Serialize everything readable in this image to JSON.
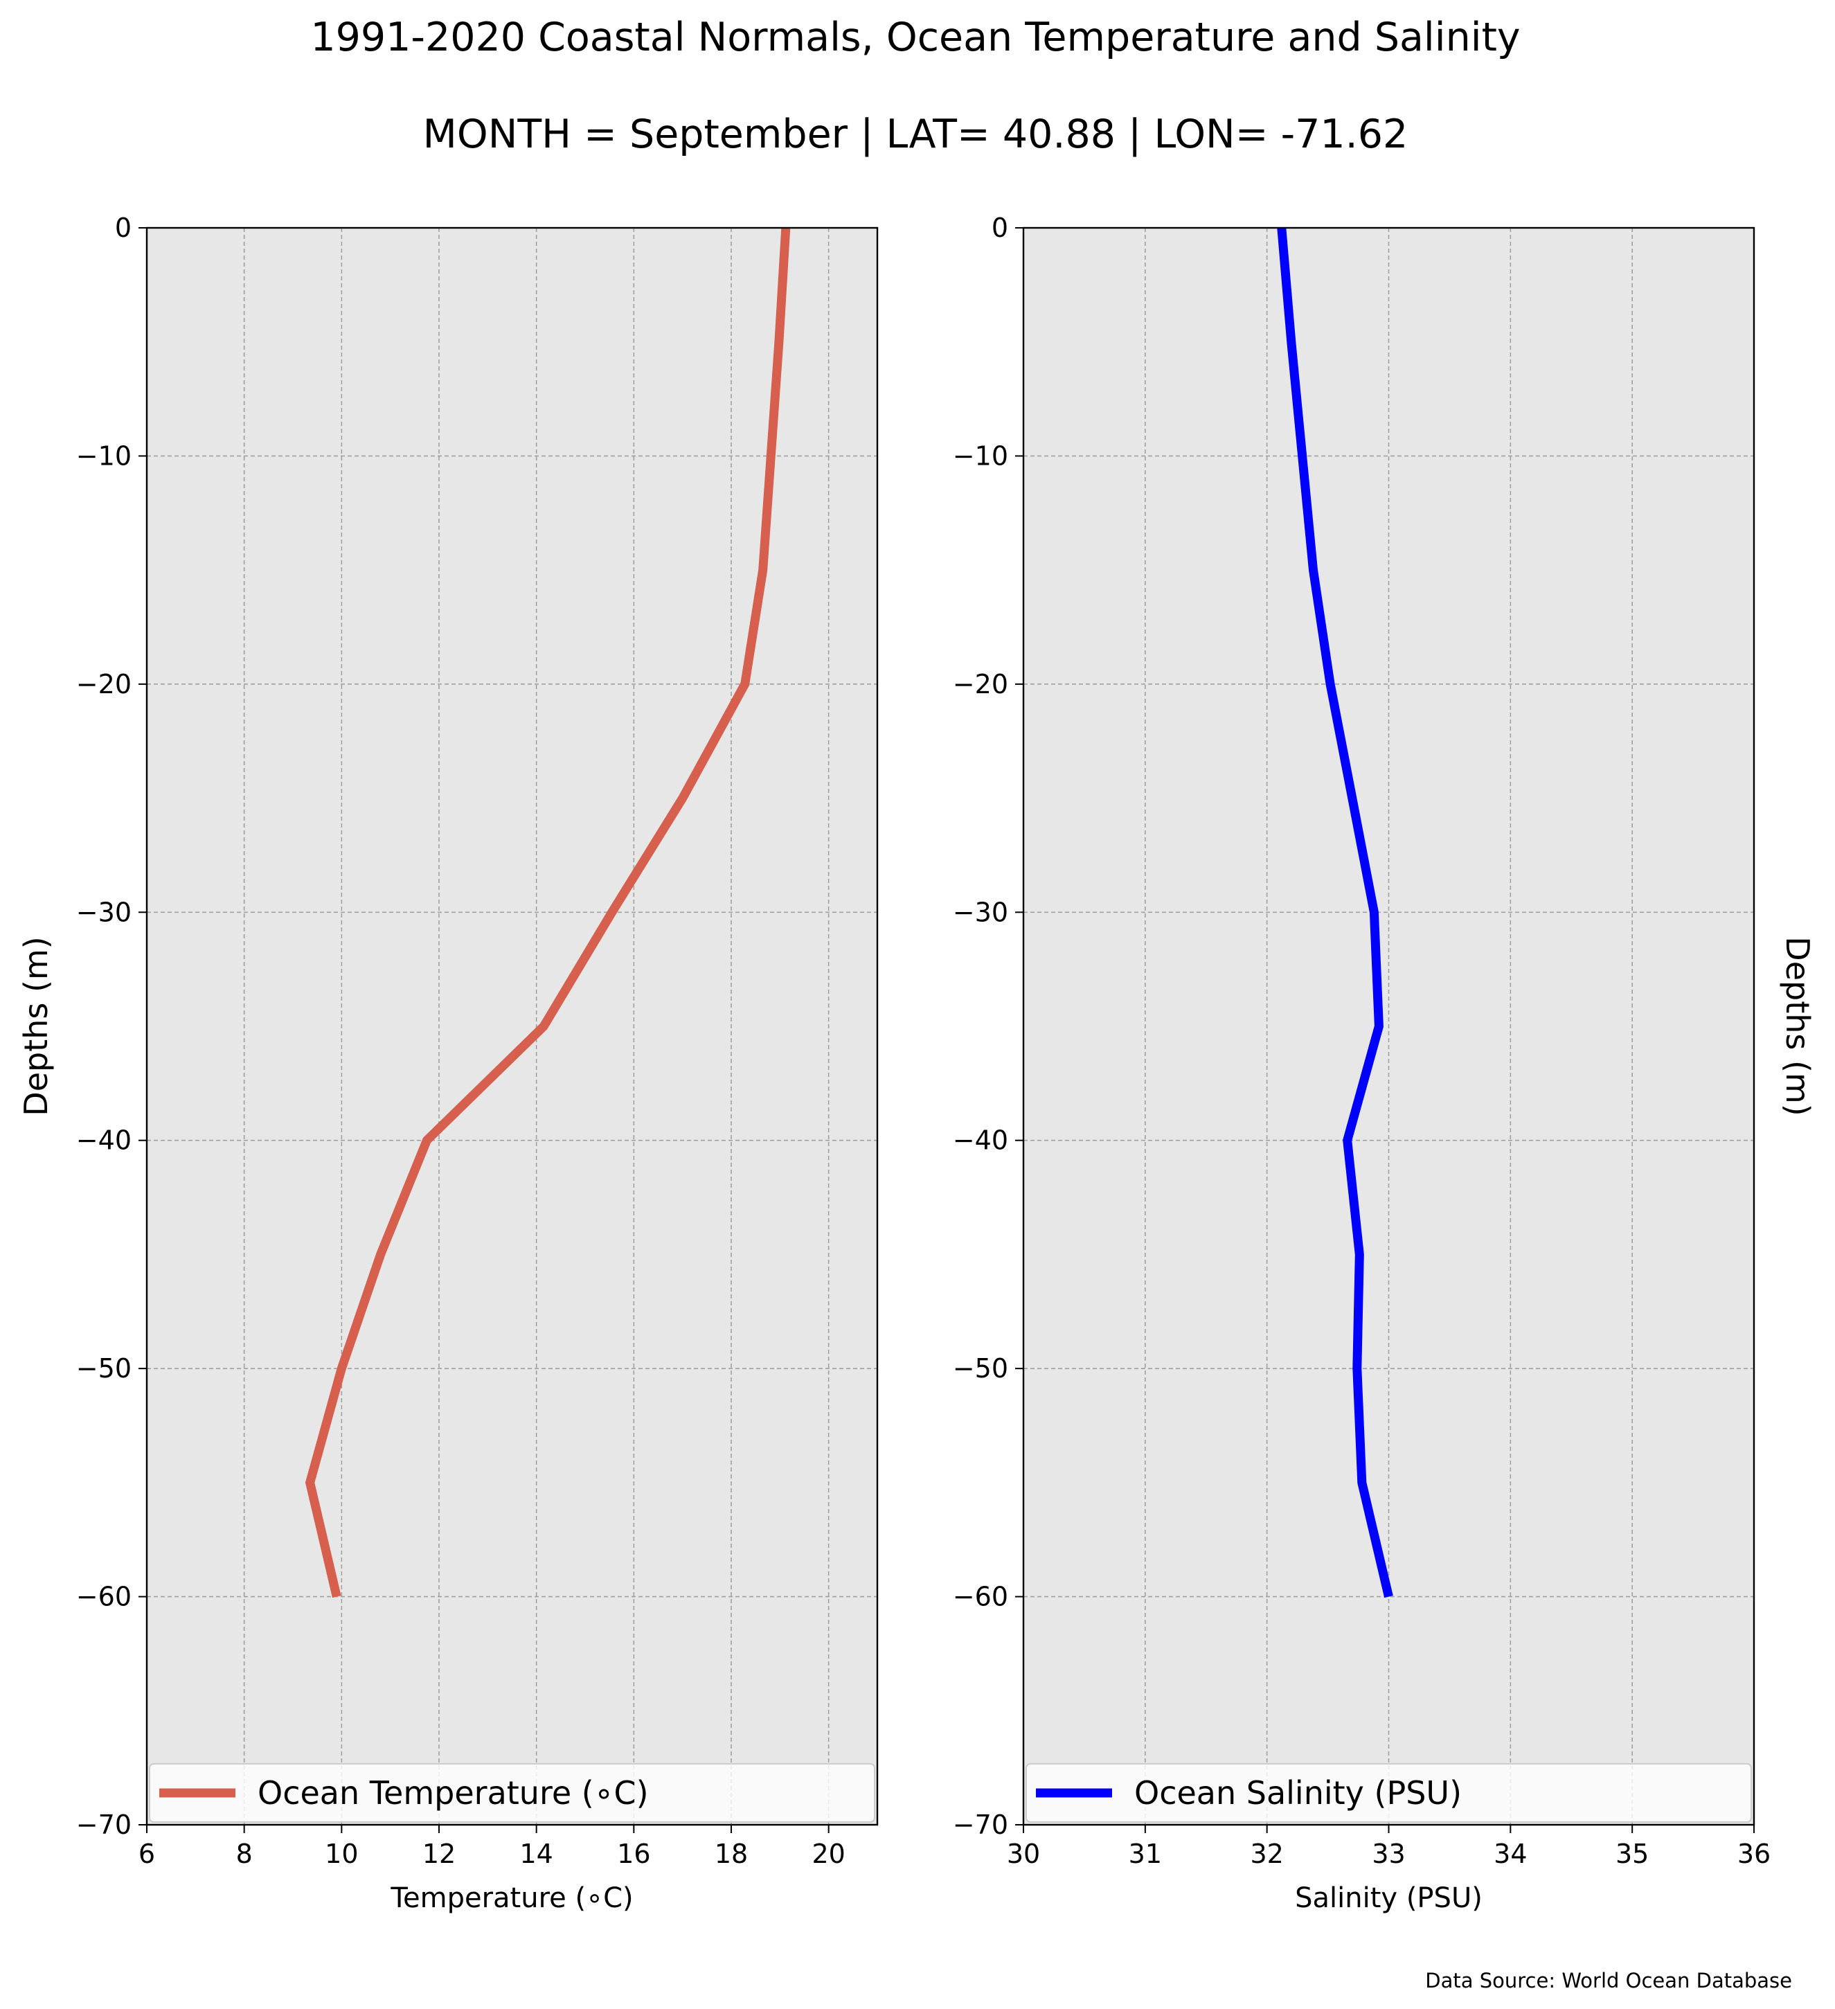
{
  "figure": {
    "title": "1991-2020 Coastal Normals, Ocean Temperature and Salinity",
    "subtitle": "MONTH = September | LAT= 40.88 | LON= -71.62",
    "source": "Data Source: World Ocean Database",
    "background": "#ffffff",
    "plot_background": "#e7e7e7",
    "grid_color": "#a0a0a0"
  },
  "chart_data": [
    {
      "type": "line",
      "xlabel": "Temperature ($^\\circ$C)",
      "xlabel_display": "Temperature (∘C)",
      "ylabel": "Depths (m)",
      "xlim": [
        6,
        21
      ],
      "ylim": [
        -70,
        0
      ],
      "xticks": [
        6,
        8,
        10,
        12,
        14,
        16,
        18,
        20
      ],
      "xtick_labels": [
        "6",
        "8",
        "10",
        "12",
        "14",
        "16",
        "18",
        "20"
      ],
      "yticks": [
        0,
        -10,
        -20,
        -30,
        -40,
        -50,
        -60,
        -70
      ],
      "ytick_labels": [
        "0",
        "−10",
        "−20",
        "−30",
        "−40",
        "−50",
        "−60",
        "−70"
      ],
      "grid": true,
      "legend_position": "bottom",
      "series": [
        {
          "name": "Ocean Temperature (∘C)",
          "color": "#d65f4d",
          "x": [
            19.12,
            18.98,
            18.65,
            18.28,
            17.0,
            15.55,
            14.15,
            11.75,
            10.8,
            10.0,
            9.35,
            9.9
          ],
          "y": [
            0,
            -5,
            -15,
            -20,
            -25,
            -30,
            -35,
            -40,
            -45,
            -50,
            -55,
            -60
          ]
        }
      ]
    },
    {
      "type": "line",
      "xlabel": "Salinity (PSU)",
      "ylabel": "Depths (m)",
      "xlim": [
        30,
        36
      ],
      "ylim": [
        -70,
        0
      ],
      "xticks": [
        30,
        31,
        32,
        33,
        34,
        35,
        36
      ],
      "xtick_labels": [
        "30",
        "31",
        "32",
        "33",
        "34",
        "35",
        "36"
      ],
      "yticks": [
        0,
        -10,
        -20,
        -30,
        -40,
        -50,
        -60,
        -70
      ],
      "ytick_labels": [
        "0",
        "−10",
        "−20",
        "−30",
        "−40",
        "−50",
        "−60",
        "−70"
      ],
      "grid": true,
      "legend_position": "bottom",
      "series": [
        {
          "name": "Ocean Salinity (PSU)",
          "color": "#0000ff",
          "x": [
            32.12,
            32.2,
            32.38,
            32.52,
            32.7,
            32.88,
            32.92,
            32.66,
            32.76,
            32.74,
            32.78,
            33.0
          ],
          "y": [
            0,
            -5,
            -15,
            -20,
            -25,
            -30,
            -35,
            -40,
            -45,
            -50,
            -55,
            -60
          ]
        }
      ]
    }
  ]
}
